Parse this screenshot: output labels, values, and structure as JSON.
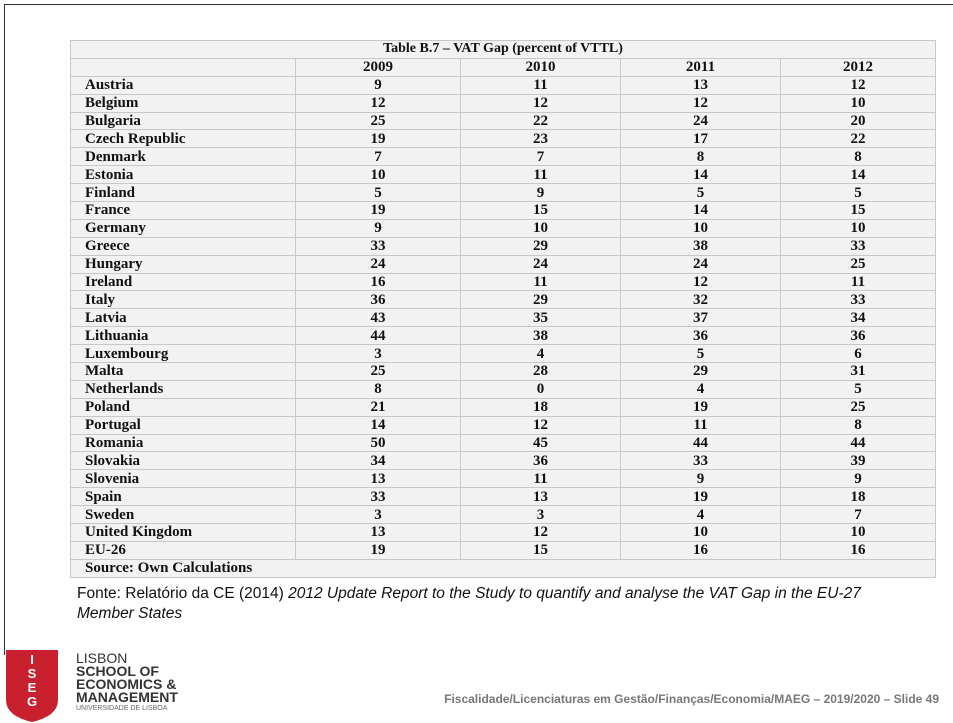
{
  "table": {
    "title": "Table B.7 – VAT Gap (percent of VTTL)",
    "header": [
      "2009",
      "2010",
      "2011",
      "2012"
    ],
    "rows": [
      [
        "Austria",
        9,
        11,
        13,
        12
      ],
      [
        "Belgium",
        12,
        12,
        12,
        10
      ],
      [
        "Bulgaria",
        25,
        22,
        24,
        20
      ],
      [
        "Czech Republic",
        19,
        23,
        17,
        22
      ],
      [
        "Denmark",
        7,
        7,
        8,
        8
      ],
      [
        "Estonia",
        10,
        11,
        14,
        14
      ],
      [
        "Finland",
        5,
        9,
        5,
        5
      ],
      [
        "France",
        19,
        15,
        14,
        15
      ],
      [
        "Germany",
        9,
        10,
        10,
        10
      ],
      [
        "Greece",
        33,
        29,
        38,
        33
      ],
      [
        "Hungary",
        24,
        24,
        24,
        25
      ],
      [
        "Ireland",
        16,
        11,
        12,
        11
      ],
      [
        "Italy",
        36,
        29,
        32,
        33
      ],
      [
        "Latvia",
        43,
        35,
        37,
        34
      ],
      [
        "Lithuania",
        44,
        38,
        36,
        36
      ],
      [
        "Luxembourg",
        3,
        4,
        5,
        6
      ],
      [
        "Malta",
        25,
        28,
        29,
        31
      ],
      [
        "Netherlands",
        8,
        0,
        4,
        5
      ],
      [
        "Poland",
        21,
        18,
        19,
        25
      ],
      [
        "Portugal",
        14,
        12,
        11,
        8
      ],
      [
        "Romania",
        50,
        45,
        44,
        44
      ],
      [
        "Slovakia",
        34,
        36,
        33,
        39
      ],
      [
        "Slovenia",
        13,
        11,
        9,
        9
      ],
      [
        "Spain",
        33,
        13,
        19,
        18
      ],
      [
        "Sweden",
        3,
        3,
        4,
        7
      ],
      [
        "United Kingdom",
        13,
        12,
        10,
        10
      ],
      [
        "EU-26",
        19,
        15,
        16,
        16
      ]
    ],
    "source": "Source: Own Calculations"
  },
  "note": {
    "prefix": "Fonte: Relatório da CE (2014) ",
    "title": "2012 Update Report to the Study to quantify and analyse the VAT Gap in the EU-27 Member States"
  },
  "logo": {
    "shield": [
      "I",
      "S",
      "E",
      "G"
    ],
    "lines": [
      "LISBON",
      "SCHOOL OF",
      "ECONOMICS &",
      "MANAGEMENT"
    ],
    "university": "UNIVERSIDADE DE LISBOA"
  },
  "footer": "Fiscalidade/Licenciaturas em Gestão/Finanças/Economia/MAEG – 2019/2020 – Slide 49"
}
